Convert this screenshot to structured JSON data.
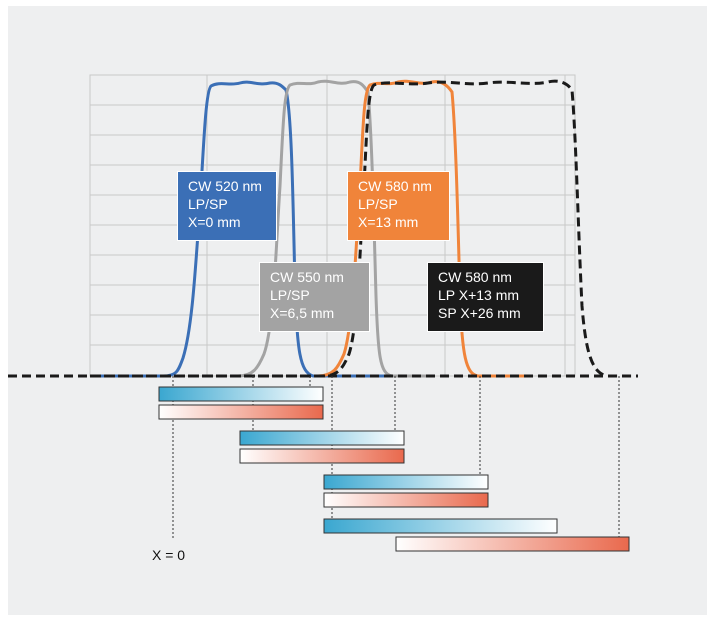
{
  "colors": {
    "blue": "#3b6fb6",
    "gray": "#a3a3a3",
    "orange": "#f0843a",
    "black": "#1a1a1a",
    "background": "#eeeff0",
    "grid": "#c8c8c8",
    "gradient_blue": "#3aa7d0",
    "gradient_red": "#e9694d"
  },
  "filters": [
    {
      "lines": [
        "CW 520 nm",
        "LP/SP",
        "X=0 mm"
      ],
      "color": "#3b6fb6"
    },
    {
      "lines": [
        "CW 550 nm",
        "LP/SP",
        "X=6,5 mm"
      ],
      "color": "#a3a3a3"
    },
    {
      "lines": [
        "CW 580 nm",
        "LP/SP",
        "X=13 mm"
      ],
      "color": "#f0843a"
    },
    {
      "lines": [
        "CW 580 nm",
        "LP X+13 mm",
        "SP X+26 mm"
      ],
      "color": "#1a1a1a"
    }
  ],
  "x_origin_label": "X = 0"
}
